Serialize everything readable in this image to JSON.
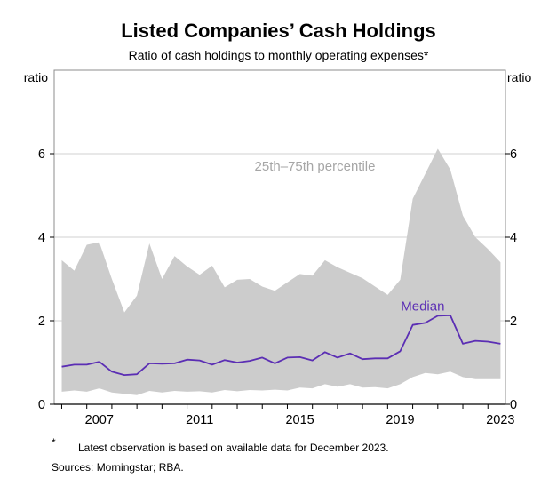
{
  "chart_data": {
    "type": "area",
    "title": "Listed Companies’ Cash Holdings",
    "subtitle": "Ratio of cash holdings to monthly operating expenses*",
    "ylabel_left": "ratio",
    "ylabel_right": "ratio",
    "ylim": [
      0,
      8
    ],
    "yticks": [
      "0",
      "2",
      "4",
      "6"
    ],
    "xlim": [
      2005.7,
      2023.7
    ],
    "xticks": [
      "2007",
      "2011",
      "2015",
      "2019",
      "2023"
    ],
    "grid": true,
    "annotations": {
      "band_label": "25th–75th percentile",
      "median_label": "Median"
    },
    "x": [
      2006.0,
      2006.5,
      2007.0,
      2007.5,
      2008.0,
      2008.5,
      2009.0,
      2009.5,
      2010.0,
      2010.5,
      2011.0,
      2011.5,
      2012.0,
      2012.5,
      2013.0,
      2013.5,
      2014.0,
      2014.5,
      2015.0,
      2015.5,
      2016.0,
      2016.5,
      2017.0,
      2017.5,
      2018.0,
      2018.5,
      2019.0,
      2019.5,
      2020.0,
      2020.5,
      2021.0,
      2021.5,
      2022.0,
      2022.5,
      2023.0,
      2023.5
    ],
    "series": [
      {
        "name": "",
        "role": "25th percentile",
        "values": [
          0.3,
          0.33,
          0.3,
          0.38,
          0.28,
          0.25,
          0.22,
          0.32,
          0.28,
          0.32,
          0.3,
          0.31,
          0.28,
          0.34,
          0.31,
          0.34,
          0.33,
          0.35,
          0.33,
          0.4,
          0.38,
          0.48,
          0.42,
          0.48,
          0.4,
          0.41,
          0.38,
          0.48,
          0.65,
          0.75,
          0.72,
          0.78,
          0.65,
          0.6,
          0.6,
          0.6
        ]
      },
      {
        "name": "",
        "role": "75th percentile",
        "values": [
          3.45,
          3.2,
          3.82,
          3.88,
          3.0,
          2.2,
          2.6,
          3.85,
          3.0,
          3.55,
          3.3,
          3.1,
          3.32,
          2.8,
          2.98,
          3.0,
          2.82,
          2.72,
          2.92,
          3.12,
          3.08,
          3.45,
          3.28,
          3.15,
          3.02,
          2.82,
          2.62,
          2.98,
          4.92,
          5.52,
          6.12,
          5.62,
          4.52,
          4.0,
          3.72,
          3.4
        ]
      },
      {
        "name": "Median",
        "values": [
          0.9,
          0.95,
          0.95,
          1.02,
          0.78,
          0.7,
          0.72,
          0.98,
          0.97,
          0.98,
          1.07,
          1.05,
          0.95,
          1.06,
          1.0,
          1.04,
          1.12,
          0.98,
          1.12,
          1.13,
          1.05,
          1.25,
          1.12,
          1.22,
          1.08,
          1.1,
          1.1,
          1.27,
          1.9,
          1.95,
          2.12,
          2.13,
          1.45,
          1.52,
          1.5,
          1.45
        ]
      }
    ],
    "colors": {
      "band": "#cccccc",
      "median": "#5b2eb4",
      "grid": "#d2d2d2",
      "axis": "#000000"
    },
    "footnote_marker": "*",
    "footnote": "Latest observation is based on available data for December 2023.",
    "sources": "Sources: Morningstar; RBA."
  }
}
